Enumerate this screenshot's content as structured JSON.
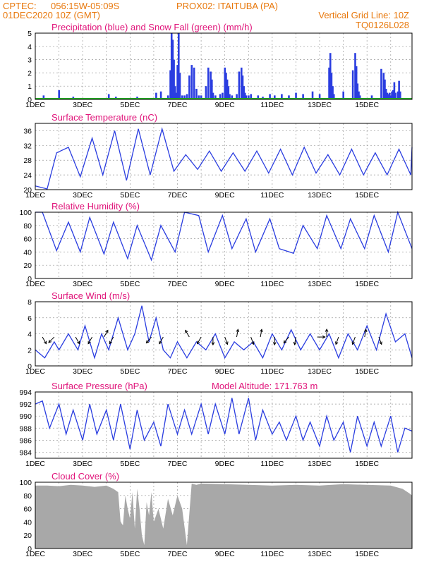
{
  "header": {
    "org": "CPTEC:",
    "coords": "056:15W-05:09S",
    "station": "PROX02: ITAITUBA (PA)",
    "run": "01DEC2020 10Z (GMT)",
    "grid_note": "Vertical Grid Line: 10Z",
    "code": "TQ0126L028"
  },
  "colors": {
    "header": "#e8780c",
    "title": "#e0147a",
    "series": "#2a3de0",
    "snow": "#22aa22",
    "cloud": "#a8a8a8"
  },
  "chart_data": [
    {
      "id": "precip",
      "type": "bar",
      "title": "Precipitation (blue) and Snow Fall (green) (mm/h)",
      "ylim": [
        0,
        5
      ],
      "yticks": [
        "0",
        "1",
        "2",
        "3",
        "4",
        "5"
      ],
      "xticks": [
        "1DEC",
        "3DEC",
        "5DEC",
        "7DEC",
        "9DEC",
        "11DEC",
        "13DEC",
        "15DEC"
      ],
      "series": [
        {
          "name": "Precipitation",
          "x": [
            0.35,
            1.0,
            1.6,
            3.1,
            3.4,
            4.3,
            5.1,
            5.3,
            5.6,
            5.7,
            5.75,
            5.8,
            5.85,
            5.9,
            5.95,
            6.0,
            6.05,
            6.1,
            6.2,
            6.3,
            6.4,
            6.5,
            6.6,
            6.7,
            6.8,
            6.9,
            7.0,
            7.2,
            7.3,
            7.4,
            7.45,
            7.5,
            7.6,
            7.8,
            7.9,
            8.0,
            8.05,
            8.1,
            8.15,
            8.2,
            8.3,
            8.5,
            8.6,
            8.7,
            8.75,
            8.8,
            8.85,
            8.9,
            9.0,
            9.1,
            9.4,
            9.6,
            9.9,
            10.1,
            10.4,
            10.7,
            11.0,
            11.3,
            11.7,
            12.0,
            12.4,
            12.45,
            12.5,
            12.55,
            12.6,
            13.0,
            13.4,
            13.5,
            13.55,
            13.6,
            13.65,
            13.7,
            14.2,
            14.6,
            14.7,
            14.75,
            14.8,
            14.85,
            14.9,
            14.95,
            15.0,
            15.05,
            15.1,
            15.15,
            15.2,
            15.3,
            15.35,
            15.4
          ],
          "values": [
            0.3,
            0.7,
            0.2,
            0.4,
            0.2,
            0.2,
            0.5,
            0.6,
            0.3,
            2.2,
            5.0,
            4.5,
            3.0,
            1.0,
            0.5,
            2.6,
            5.0,
            2.0,
            0.3,
            0.3,
            0.4,
            1.8,
            2.6,
            2.4,
            0.8,
            0.3,
            0.3,
            1.0,
            2.4,
            2.1,
            1.5,
            0.5,
            0.3,
            0.4,
            0.5,
            2.4,
            2.0,
            1.5,
            1.0,
            0.4,
            0.3,
            0.4,
            2.1,
            2.4,
            1.8,
            1.0,
            0.5,
            0.3,
            0.3,
            0.4,
            0.3,
            0.2,
            0.4,
            0.3,
            0.4,
            0.3,
            0.5,
            0.4,
            0.6,
            0.4,
            2.4,
            3.5,
            2.0,
            1.0,
            0.4,
            0.6,
            2.2,
            3.5,
            2.5,
            1.2,
            0.6,
            0.3,
            0.3,
            2.3,
            2.0,
            1.5,
            0.8,
            0.5,
            0.4,
            0.5,
            0.3,
            0.6,
            0.7,
            1.3,
            0.5,
            0.6,
            1.4,
            0.6
          ]
        },
        {
          "name": "Snow Fall",
          "x": [
            0,
            15.9
          ],
          "values": [
            0,
            0
          ]
        }
      ]
    },
    {
      "id": "temperature",
      "type": "line",
      "title": "Surface Temperature (nC)",
      "ylim": [
        20,
        38
      ],
      "yticks": [
        "20",
        "24",
        "28",
        "32",
        "36"
      ],
      "xticks": [
        "1DEC",
        "3DEC",
        "5DEC",
        "7DEC",
        "9DEC",
        "11DEC",
        "13DEC",
        "15DEC"
      ],
      "x": [
        0,
        0.5,
        0.9,
        1.4,
        1.9,
        2.4,
        2.85,
        3.35,
        3.85,
        4.35,
        4.85,
        5.35,
        5.85,
        6.35,
        6.85,
        7.35,
        7.85,
        8.35,
        8.85,
        9.35,
        9.85,
        10.35,
        10.85,
        11.35,
        11.85,
        12.35,
        12.85,
        13.35,
        13.85,
        14.35,
        14.85,
        15.35,
        15.85,
        15.9
      ],
      "values": [
        21,
        20.2,
        30,
        31.5,
        23.5,
        34,
        24,
        36,
        22.5,
        36.5,
        24,
        36.5,
        25,
        29.5,
        25.5,
        30.5,
        25,
        30,
        25,
        30.5,
        24.5,
        31,
        24,
        31.5,
        24.5,
        29.5,
        24,
        31,
        24,
        30,
        24,
        31,
        24,
        31.5
      ]
    },
    {
      "id": "humidity",
      "type": "line",
      "title": "Relative Humidity (%)",
      "ylim": [
        0,
        100
      ],
      "yticks": [
        "0",
        "20",
        "40",
        "60",
        "80",
        "100"
      ],
      "xticks": [
        "1DEC",
        "3DEC",
        "5DEC",
        "7DEC",
        "9DEC",
        "11DEC",
        "13DEC",
        "15DEC"
      ],
      "x": [
        0,
        0.3,
        0.9,
        1.4,
        1.9,
        2.3,
        2.9,
        3.3,
        3.9,
        4.3,
        4.9,
        5.3,
        5.9,
        6.3,
        6.9,
        7.3,
        7.9,
        8.3,
        8.9,
        9.3,
        9.9,
        10.3,
        10.9,
        11.3,
        11.9,
        12.3,
        12.9,
        13.3,
        13.9,
        14.3,
        14.9,
        15.3,
        15.9
      ],
      "values": [
        100,
        100,
        42,
        85,
        40,
        92,
        37,
        85,
        30,
        80,
        28,
        80,
        40,
        100,
        95,
        40,
        95,
        45,
        90,
        40,
        90,
        45,
        38,
        80,
        45,
        95,
        45,
        90,
        45,
        95,
        40,
        100,
        45
      ]
    },
    {
      "id": "wind",
      "type": "line",
      "title": "Surface Wind (m/s)",
      "ylim": [
        0,
        8
      ],
      "yticks": [
        "0",
        "2",
        "4",
        "6",
        "8"
      ],
      "xticks": [
        "1DEC",
        "3DEC",
        "5DEC",
        "7DEC",
        "9DEC",
        "11DEC",
        "13DEC",
        "15DEC"
      ],
      "x": [
        0,
        0.4,
        0.8,
        1.0,
        1.4,
        1.8,
        2.1,
        2.5,
        2.8,
        3.1,
        3.5,
        3.9,
        4.2,
        4.5,
        4.8,
        5.1,
        5.4,
        5.7,
        6.0,
        6.4,
        6.8,
        7.2,
        7.6,
        8.0,
        8.4,
        8.8,
        9.2,
        9.6,
        10.0,
        10.4,
        10.8,
        11.2,
        11.6,
        12.0,
        12.4,
        12.8,
        13.2,
        13.6,
        14.0,
        14.4,
        14.8,
        15.2,
        15.6,
        15.9
      ],
      "values": [
        2,
        1,
        3,
        2,
        4,
        2,
        5,
        1,
        4,
        2,
        6,
        2,
        4,
        7.5,
        3,
        6,
        2,
        1,
        3,
        1,
        3,
        2,
        4,
        1,
        3,
        2,
        3,
        1,
        4,
        2,
        4.5,
        2,
        4,
        2,
        4,
        1,
        4,
        2,
        5,
        2,
        6.5,
        3,
        4,
        1
      ],
      "arrows": [
        [
          0.3,
          300
        ],
        [
          0.8,
          225
        ],
        [
          1.7,
          300
        ],
        [
          2.4,
          240
        ],
        [
          2.9,
          60
        ],
        [
          3.3,
          240
        ],
        [
          4.9,
          230
        ],
        [
          5.4,
          240
        ],
        [
          6.5,
          120
        ],
        [
          7.0,
          240
        ],
        [
          7.5,
          270
        ],
        [
          8.0,
          290
        ],
        [
          8.5,
          80
        ],
        [
          9.1,
          290
        ],
        [
          9.5,
          80
        ],
        [
          10.1,
          270
        ],
        [
          10.7,
          230
        ],
        [
          11.0,
          260
        ],
        [
          11.9,
          0
        ],
        [
          12.3,
          90
        ],
        [
          12.8,
          250
        ],
        [
          13.5,
          250
        ],
        [
          13.9,
          80
        ],
        [
          14.5,
          290
        ]
      ]
    },
    {
      "id": "pressure",
      "type": "line",
      "title": "Surface Pressure (hPa)",
      "altitude_note": "Model Altitude: 171.763 m",
      "ylim": [
        983,
        994
      ],
      "yticks": [
        "984",
        "986",
        "988",
        "990",
        "992",
        "994"
      ],
      "xticks": [
        "1DEC",
        "3DEC",
        "5DEC",
        "7DEC",
        "9DEC",
        "11DEC",
        "13DEC",
        "15DEC"
      ],
      "x": [
        0,
        0.3,
        0.6,
        1.0,
        1.3,
        1.6,
        2.0,
        2.3,
        2.6,
        3.0,
        3.3,
        3.6,
        4.0,
        4.3,
        4.6,
        5.0,
        5.3,
        5.6,
        6.0,
        6.3,
        6.6,
        7.0,
        7.3,
        7.6,
        8.0,
        8.3,
        8.6,
        9.0,
        9.3,
        9.6,
        10.0,
        10.3,
        10.6,
        11.0,
        11.3,
        11.6,
        12.0,
        12.3,
        12.6,
        13.0,
        13.3,
        13.6,
        14.0,
        14.3,
        14.6,
        15.0,
        15.3,
        15.6,
        15.9
      ],
      "values": [
        992,
        992.5,
        988,
        992,
        987,
        991,
        986,
        992,
        987,
        991,
        986,
        992,
        984.5,
        991,
        986,
        989,
        985,
        992,
        987,
        991,
        987,
        992,
        987,
        992,
        987,
        993,
        987,
        993,
        986,
        991,
        987,
        989,
        986,
        990,
        986,
        989,
        985,
        990,
        986,
        989,
        984,
        990,
        985,
        989,
        985,
        990,
        984,
        988,
        987.5
      ]
    },
    {
      "id": "cloud",
      "type": "area",
      "title": "Cloud Cover (%)",
      "ylim": [
        0,
        100
      ],
      "yticks": [
        "0",
        "20",
        "40",
        "60",
        "80",
        "100"
      ],
      "xticks": [
        "1DEC",
        "3DEC",
        "5DEC",
        "7DEC",
        "9DEC",
        "11DEC",
        "13DEC",
        "15DEC"
      ],
      "x": [
        0,
        0.5,
        1.0,
        1.5,
        2.0,
        2.5,
        3.0,
        3.3,
        3.5,
        3.6,
        3.7,
        3.8,
        3.9,
        4.0,
        4.1,
        4.2,
        4.3,
        4.4,
        4.5,
        4.6,
        4.7,
        4.8,
        4.9,
        5.0,
        5.2,
        5.4,
        5.6,
        5.8,
        6.0,
        6.2,
        6.4,
        6.6,
        6.8,
        7.0,
        8.0,
        9.0,
        10.0,
        11.0,
        12.0,
        13.0,
        14.0,
        15.0,
        15.5,
        15.8,
        15.9
      ],
      "values": [
        95,
        95,
        94,
        96,
        95,
        93,
        95,
        90,
        85,
        40,
        35,
        80,
        60,
        45,
        85,
        30,
        90,
        60,
        20,
        5,
        70,
        50,
        85,
        40,
        60,
        30,
        75,
        50,
        80,
        60,
        5,
        98,
        96,
        98,
        97,
        96,
        95,
        96,
        95,
        97,
        96,
        95,
        90,
        83,
        80
      ]
    }
  ]
}
